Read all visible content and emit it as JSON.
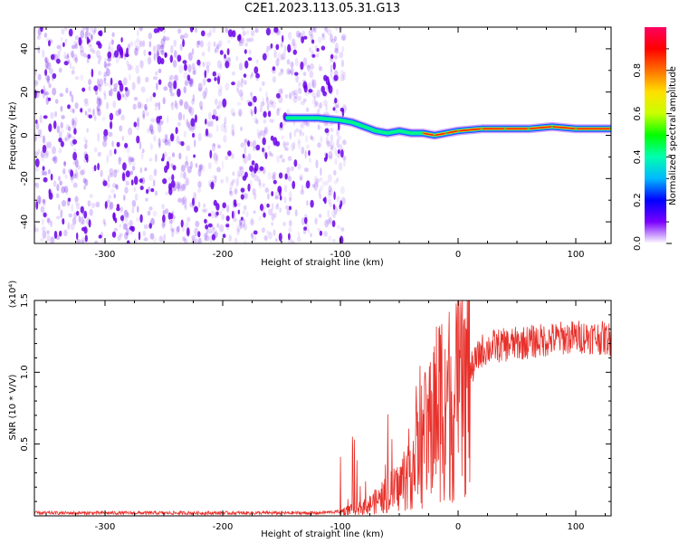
{
  "title": "C2E1.2023.113.05.31.G13",
  "colors": {
    "spectrogram_sparse": "#7b2cf0",
    "spectrogram_dense": "#6a00e8",
    "snr_line": "#e8302a",
    "colorbar_stops": [
      "#ffffff",
      "#7a00ff",
      "#0000ff",
      "#00b8ff",
      "#00ffb0",
      "#00ff00",
      "#c8ff00",
      "#ffe000",
      "#ff7000",
      "#ff0000",
      "#ff0060"
    ]
  },
  "chart_data": [
    {
      "type": "heatmap",
      "title": "",
      "xlabel": "Height of straight line (km)",
      "ylabel": "Frequency (Hz)",
      "xlim": [
        -360,
        130
      ],
      "ylim": [
        -50,
        50
      ],
      "xticks": [
        -300,
        -200,
        -100,
        0,
        100
      ],
      "yticks": [
        -40,
        -20,
        0,
        20,
        40
      ],
      "colorbar": {
        "label": "Normalized spectral amplitude",
        "range": [
          0,
          1
        ],
        "ticks": [
          0.0,
          0.2,
          0.4,
          0.6,
          0.8
        ]
      },
      "noise_region_x": [
        -360,
        -100
      ],
      "signal_track": {
        "x": [
          -145,
          -120,
          -100,
          -90,
          -80,
          -70,
          -60,
          -50,
          -40,
          -30,
          -20,
          -10,
          0,
          20,
          40,
          60,
          80,
          100,
          130
        ],
        "frequency": [
          8,
          8,
          7,
          6,
          4,
          2,
          1,
          2,
          1,
          1,
          0,
          1,
          2,
          3,
          3,
          3,
          4,
          3,
          3
        ],
        "peak_amplitude": [
          0.55,
          0.6,
          0.55,
          0.45,
          0.5,
          0.5,
          0.55,
          0.6,
          0.7,
          0.8,
          0.85,
          0.85,
          0.9,
          0.95,
          0.95,
          0.95,
          0.95,
          0.95,
          0.95
        ]
      }
    },
    {
      "type": "line",
      "title": "",
      "xlabel": "Height of straight line (km)",
      "ylabel": "SNR (10 * V/V)",
      "yscale_label": "(x10⁴)",
      "xlim": [
        -360,
        130
      ],
      "ylim": [
        0,
        1.5
      ],
      "xticks": [
        -300,
        -200,
        -100,
        0,
        100
      ],
      "yticks": [
        0.5,
        1.0,
        1.5
      ],
      "ytick_labels": [
        "0.5",
        "1.0",
        "1.5"
      ],
      "series": [
        {
          "x": [
            -360,
            -300,
            -200,
            -120,
            -100,
            -80,
            -70,
            -60,
            -50,
            -40,
            -30,
            -25,
            -20,
            -15,
            -10,
            -5,
            0,
            10,
            20,
            30,
            50,
            70,
            90,
            110,
            130
          ],
          "y": [
            0.02,
            0.02,
            0.02,
            0.02,
            0.03,
            0.06,
            0.1,
            0.15,
            0.2,
            0.35,
            0.5,
            0.6,
            0.7,
            0.8,
            0.85,
            0.75,
            0.8,
            1.0,
            1.15,
            1.18,
            1.2,
            1.22,
            1.24,
            1.25,
            1.23
          ]
        }
      ]
    }
  ]
}
